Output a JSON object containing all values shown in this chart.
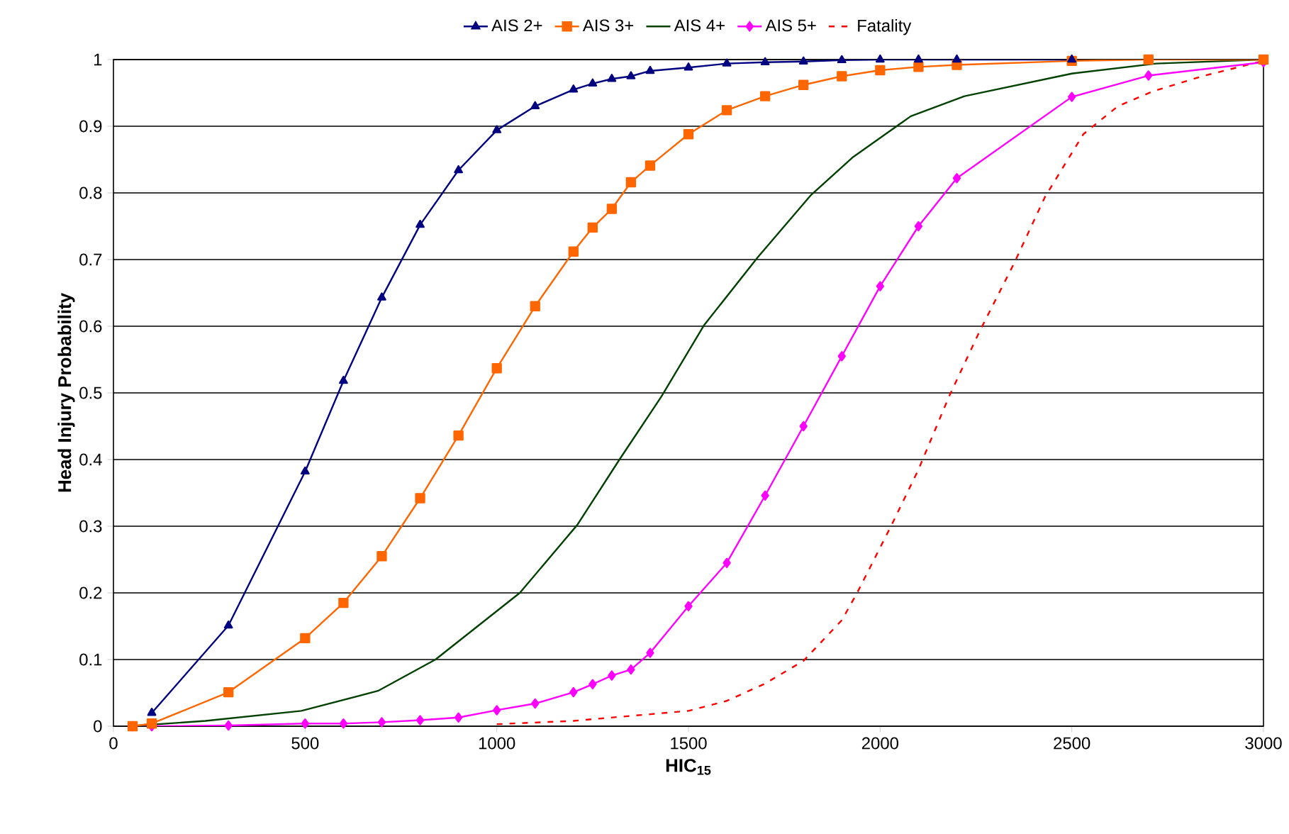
{
  "chart_data": {
    "type": "line",
    "xlabel": "HIC$_{15}$",
    "ylabel": "Head Injury Probability",
    "xlim": [
      0,
      3000
    ],
    "xticks": [
      0,
      500,
      1000,
      1500,
      2000,
      2500,
      3000
    ],
    "ylim": [
      0,
      1
    ],
    "yticks": [
      0,
      0.1,
      0.2,
      0.3,
      0.4,
      0.5,
      0.6,
      0.7,
      0.8,
      0.9,
      1
    ],
    "grid": "y",
    "legend": "top",
    "series": [
      {
        "name": "AIS 2+",
        "color": "#000080",
        "marker": "triangle",
        "line_style": "solid",
        "x": [
          100,
          300,
          500,
          600,
          700,
          800,
          900,
          1000,
          1100,
          1200,
          1250,
          1300,
          1350,
          1400,
          1500,
          1600,
          1700,
          1800,
          1900,
          2000,
          2100,
          2200,
          2500
        ],
        "values": [
          0.02,
          0.151,
          0.382,
          0.518,
          0.643,
          0.752,
          0.834,
          0.894,
          0.93,
          0.955,
          0.964,
          0.971,
          0.975,
          0.983,
          0.988,
          0.994,
          0.996,
          0.997,
          0.999,
          1.0,
          1.0,
          1.0,
          1.0
        ]
      },
      {
        "name": "AIS 3+",
        "color": "#ff6600",
        "marker": "square",
        "line_style": "solid",
        "x": [
          50,
          100,
          300,
          500,
          600,
          700,
          800,
          900,
          1000,
          1100,
          1200,
          1250,
          1300,
          1350,
          1400,
          1500,
          1600,
          1700,
          1800,
          1900,
          2000,
          2100,
          2200,
          2500,
          2700,
          3000
        ],
        "values": [
          0,
          0.004,
          0.051,
          0.132,
          0.185,
          0.255,
          0.342,
          0.436,
          0.537,
          0.63,
          0.712,
          0.748,
          0.776,
          0.816,
          0.841,
          0.888,
          0.924,
          0.945,
          0.962,
          0.975,
          0.984,
          0.989,
          0.992,
          0.998,
          1.0,
          1.0
        ]
      },
      {
        "name": "AIS 4+",
        "color": "#004000",
        "marker": "none",
        "line_style": "solid",
        "x": [
          40,
          240,
          490,
          690,
          840,
          1060,
          1210,
          1320,
          1430,
          1540,
          1680,
          1820,
          1930,
          2080,
          2220,
          2500,
          2720,
          3000
        ],
        "values": [
          0,
          0.008,
          0.023,
          0.053,
          0.1,
          0.2,
          0.302,
          0.4,
          0.495,
          0.601,
          0.703,
          0.797,
          0.854,
          0.915,
          0.945,
          0.979,
          0.994,
          1.0
        ]
      },
      {
        "name": "AIS 5+",
        "color": "#ff00ff",
        "marker": "diamond",
        "line_style": "solid",
        "x": [
          50,
          100,
          300,
          500,
          600,
          700,
          800,
          900,
          1000,
          1100,
          1200,
          1250,
          1300,
          1350,
          1400,
          1500,
          1600,
          1700,
          1800,
          1900,
          2000,
          2100,
          2200,
          2500,
          2700,
          3000
        ],
        "values": [
          0,
          0,
          0.001,
          0.004,
          0.004,
          0.006,
          0.009,
          0.013,
          0.024,
          0.034,
          0.051,
          0.063,
          0.076,
          0.085,
          0.11,
          0.18,
          0.245,
          0.346,
          0.45,
          0.555,
          0.66,
          0.75,
          0.822,
          0.944,
          0.976,
          0.996
        ]
      },
      {
        "name": "Fatality",
        "color": "#ff0000",
        "marker": "none",
        "line_style": "dashed",
        "x": [
          1000,
          1200,
          1400,
          1500,
          1600,
          1700,
          1800,
          1900,
          1940,
          2030,
          2100,
          2180,
          2260,
          2350,
          2430,
          2530,
          2620,
          2710,
          2840,
          3000
        ],
        "values": [
          0.003,
          0.008,
          0.018,
          0.023,
          0.038,
          0.064,
          0.098,
          0.159,
          0.2,
          0.302,
          0.385,
          0.495,
          0.593,
          0.695,
          0.794,
          0.888,
          0.93,
          0.952,
          0.975,
          0.998
        ]
      }
    ]
  }
}
